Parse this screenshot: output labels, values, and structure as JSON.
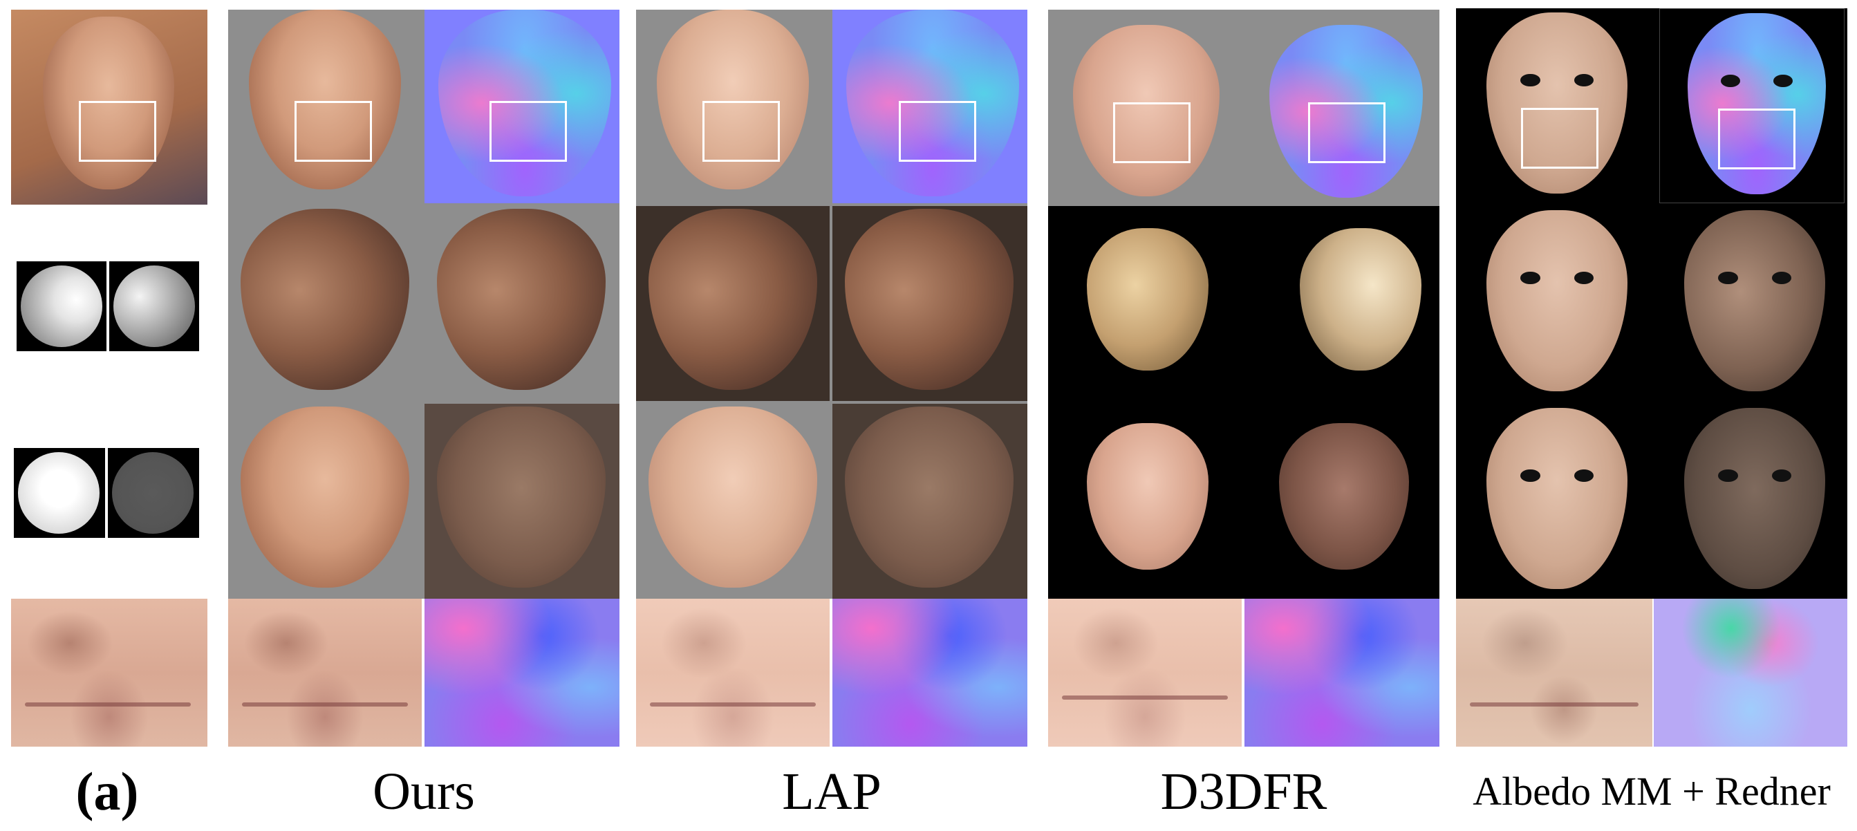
{
  "panel_label": "(a)",
  "methods": [
    {
      "name": "Ours"
    },
    {
      "name": "LAP"
    },
    {
      "name": "D3DFR"
    },
    {
      "name": "Albedo MM + Redner"
    }
  ],
  "colors": {
    "background": "#ffffff",
    "gray_backdrop": "#8e8e8e",
    "black_backdrop": "#000000",
    "selection_box": "#ffffff"
  },
  "icons": [
    "lighting-sphere-icon"
  ]
}
